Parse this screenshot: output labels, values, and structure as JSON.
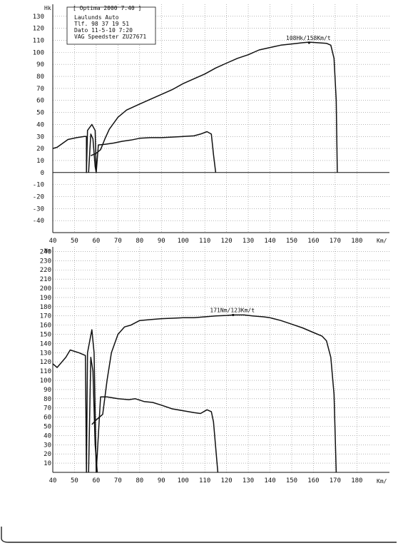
{
  "header": {
    "title": "Optima 2000 7.40",
    "lines": [
      "Laulunds Auto",
      "Tlf. 98 37 19 51",
      "Dato 11-5-10   7:20",
      "VAG Speedster ZU27671"
    ]
  },
  "chart_data": [
    {
      "type": "line",
      "ylabel": "Hk",
      "xlabel": "Km/",
      "xlim": [
        40,
        195
      ],
      "ylim": [
        -50,
        140
      ],
      "x_ticks": [
        40,
        50,
        60,
        70,
        80,
        90,
        100,
        110,
        120,
        130,
        140,
        150,
        160,
        170,
        180
      ],
      "y_ticks": [
        -40,
        -30,
        -20,
        -10,
        0,
        10,
        20,
        30,
        40,
        50,
        60,
        70,
        80,
        90,
        100,
        110,
        120,
        130
      ],
      "grid": true,
      "annotation": {
        "text": "108Hk/158Km/t",
        "x": 158,
        "y": 108
      },
      "series": [
        {
          "values": [
            [
              40,
              20
            ],
            [
              42,
              21
            ],
            [
              47,
              27.5
            ],
            [
              51,
              29
            ],
            [
              54.5,
              30
            ],
            [
              55.5,
              30
            ],
            [
              55.5,
              0
            ],
            [
              56,
              35
            ],
            [
              58,
              40
            ],
            [
              59.5,
              35
            ],
            [
              60,
              0
            ],
            [
              61,
              23
            ],
            [
              64,
              23.5
            ],
            [
              68,
              24.5
            ],
            [
              72,
              26
            ],
            [
              76,
              27
            ],
            [
              80,
              28.5
            ],
            [
              85,
              29
            ],
            [
              90,
              29
            ],
            [
              95,
              29.5
            ],
            [
              100,
              30
            ],
            [
              105,
              30.5
            ],
            [
              108,
              32
            ],
            [
              111,
              34
            ],
            [
              113,
              32
            ],
            [
              114,
              15
            ],
            [
              115,
              0
            ]
          ]
        },
        {
          "values": [
            [
              57.5,
              14
            ],
            [
              60,
              16
            ],
            [
              62,
              19
            ],
            [
              64,
              28
            ],
            [
              66,
              36
            ],
            [
              70,
              46
            ],
            [
              74,
              52
            ],
            [
              80,
              57
            ],
            [
              85,
              61
            ],
            [
              90,
              65
            ],
            [
              95,
              69
            ],
            [
              100,
              74
            ],
            [
              105,
              78
            ],
            [
              110,
              82
            ],
            [
              115,
              87
            ],
            [
              120,
              91
            ],
            [
              125,
              95
            ],
            [
              130,
              98
            ],
            [
              135,
              102
            ],
            [
              140,
              104
            ],
            [
              145,
              106
            ],
            [
              150,
              107
            ],
            [
              155,
              108
            ],
            [
              158,
              108.5
            ],
            [
              162,
              108
            ],
            [
              166,
              107.5
            ],
            [
              168,
              106
            ],
            [
              169.5,
              95
            ],
            [
              170.5,
              60
            ],
            [
              171,
              0
            ]
          ]
        },
        {
          "values": [
            [
              56.5,
              0
            ],
            [
              57.5,
              32
            ],
            [
              58.5,
              28
            ],
            [
              59.5,
              5
            ],
            [
              60,
              0
            ]
          ]
        }
      ]
    },
    {
      "type": "line",
      "ylabel": "Nm",
      "xlabel": "Km/",
      "xlim": [
        40,
        195
      ],
      "ylim": [
        0,
        245
      ],
      "x_ticks": [
        40,
        50,
        60,
        70,
        80,
        90,
        100,
        110,
        120,
        130,
        140,
        150,
        160,
        170,
        180
      ],
      "y_ticks": [
        10,
        20,
        30,
        40,
        50,
        60,
        70,
        80,
        90,
        100,
        110,
        120,
        130,
        140,
        150,
        160,
        170,
        180,
        190,
        200,
        210,
        220,
        230,
        240
      ],
      "grid": true,
      "annotation": {
        "text": "171Nm/123Km/t",
        "x": 123,
        "y": 171
      },
      "series": [
        {
          "values": [
            [
              40,
              118
            ],
            [
              42,
              114
            ],
            [
              46,
              125
            ],
            [
              48,
              133
            ],
            [
              52,
              130
            ],
            [
              55,
              127
            ],
            [
              55.5,
              0
            ],
            [
              56,
              130
            ],
            [
              58,
              155
            ],
            [
              59,
              130
            ],
            [
              60,
              0
            ],
            [
              62,
              82
            ],
            [
              65,
              82
            ],
            [
              70,
              80
            ],
            [
              75,
              79
            ],
            [
              78,
              80
            ],
            [
              82,
              77
            ],
            [
              86,
              76
            ],
            [
              90,
              73
            ],
            [
              95,
              69
            ],
            [
              100,
              67
            ],
            [
              105,
              65
            ],
            [
              108,
              64
            ],
            [
              111,
              68
            ],
            [
              113,
              66
            ],
            [
              114,
              55
            ],
            [
              116,
              0
            ]
          ]
        },
        {
          "values": [
            [
              58,
              52
            ],
            [
              60,
              57
            ],
            [
              63,
              63
            ],
            [
              65,
              100
            ],
            [
              67,
              130
            ],
            [
              70,
              150
            ],
            [
              73,
              158
            ],
            [
              76,
              160
            ],
            [
              80,
              165
            ],
            [
              85,
              166
            ],
            [
              90,
              167
            ],
            [
              95,
              167.5
            ],
            [
              100,
              168
            ],
            [
              105,
              168
            ],
            [
              110,
              169
            ],
            [
              115,
              170
            ],
            [
              120,
              170.5
            ],
            [
              123,
              171
            ],
            [
              128,
              171
            ],
            [
              132,
              170
            ],
            [
              137,
              169
            ],
            [
              140,
              168
            ],
            [
              145,
              165
            ],
            [
              150,
              161
            ],
            [
              155,
              157
            ],
            [
              160,
              152
            ],
            [
              164,
              148
            ],
            [
              166,
              143
            ],
            [
              168,
              125
            ],
            [
              169.5,
              85
            ],
            [
              170.5,
              0
            ]
          ]
        },
        {
          "values": [
            [
              56.5,
              0
            ],
            [
              57.5,
              125
            ],
            [
              58.5,
              110
            ],
            [
              59.5,
              30
            ],
            [
              60.5,
              0
            ]
          ]
        }
      ]
    }
  ]
}
